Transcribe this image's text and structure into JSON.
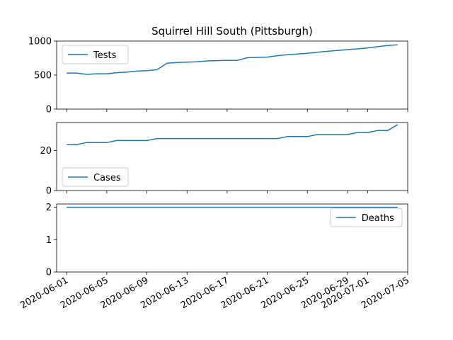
{
  "title": "Squirrel Hill South (Pittsburgh)",
  "chart_data": {
    "type": "line",
    "title": "Squirrel Hill South (Pittsburgh)",
    "line_color": "#1f77b4",
    "x_ticks": [
      "2020-06-01",
      "2020-06-05",
      "2020-06-09",
      "2020-06-13",
      "2020-06-17",
      "2020-06-21",
      "2020-06-25",
      "2020-06-29",
      "2020-07-01",
      "2020-07-05"
    ],
    "x": [
      "2020-06-01",
      "2020-06-02",
      "2020-06-03",
      "2020-06-04",
      "2020-06-05",
      "2020-06-06",
      "2020-06-07",
      "2020-06-08",
      "2020-06-09",
      "2020-06-10",
      "2020-06-11",
      "2020-06-12",
      "2020-06-13",
      "2020-06-14",
      "2020-06-15",
      "2020-06-16",
      "2020-06-17",
      "2020-06-18",
      "2020-06-19",
      "2020-06-20",
      "2020-06-21",
      "2020-06-22",
      "2020-06-23",
      "2020-06-24",
      "2020-06-25",
      "2020-06-26",
      "2020-06-27",
      "2020-06-28",
      "2020-06-29",
      "2020-06-30",
      "2020-07-01",
      "2020-07-02",
      "2020-07-03",
      "2020-07-04"
    ],
    "xlim": [
      "2020-05-31",
      "2020-07-05"
    ],
    "panels": [
      {
        "name": "Tests",
        "legend_loc": "upper-left",
        "ylim": [
          0,
          1000
        ],
        "yticks": [
          0,
          500,
          1000
        ],
        "values": [
          530,
          530,
          510,
          520,
          520,
          535,
          545,
          558,
          565,
          578,
          675,
          685,
          690,
          695,
          708,
          712,
          716,
          716,
          755,
          760,
          765,
          785,
          800,
          810,
          820,
          835,
          850,
          862,
          875,
          885,
          900,
          918,
          935,
          945
        ]
      },
      {
        "name": "Cases",
        "legend_loc": "lower-left",
        "ylim": [
          0,
          34
        ],
        "yticks": [
          0,
          20
        ],
        "values": [
          23,
          23,
          24,
          24,
          24,
          25,
          25,
          25,
          25,
          26,
          26,
          26,
          26,
          26,
          26,
          26,
          26,
          26,
          26,
          26,
          26,
          26,
          27,
          27,
          27,
          28,
          28,
          28,
          28,
          29,
          29,
          30,
          30,
          33
        ]
      },
      {
        "name": "Deaths",
        "legend_loc": "upper-right",
        "ylim": [
          0,
          2.1
        ],
        "yticks": [
          0,
          1,
          2
        ],
        "values": [
          2,
          2,
          2,
          2,
          2,
          2,
          2,
          2,
          2,
          2,
          2,
          2,
          2,
          2,
          2,
          2,
          2,
          2,
          2,
          2,
          2,
          2,
          2,
          2,
          2,
          2,
          2,
          2,
          2,
          2,
          2,
          2,
          2,
          2
        ]
      }
    ]
  }
}
